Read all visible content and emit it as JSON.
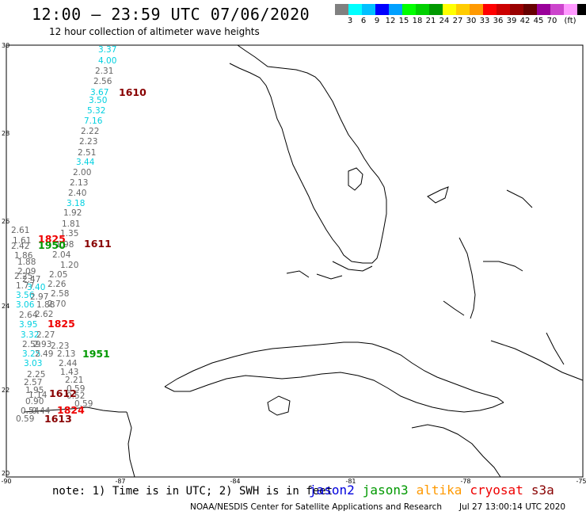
{
  "header": {
    "title": "12:00 — 23:59 UTC 07/06/2020",
    "subtitle": "12 hour collection of altimeter wave heights"
  },
  "legend": {
    "unit": "(ft)",
    "colors": [
      "#808080",
      "#00ffff",
      "#00c0ff",
      "#0000ff",
      "#00a0ff",
      "#00ff00",
      "#00d000",
      "#009900",
      "#ffff00",
      "#ffcc00",
      "#ff9900",
      "#ff0000",
      "#cc0000",
      "#990000",
      "#660000",
      "#990099",
      "#cc44cc",
      "#ff99ff",
      "#000000"
    ],
    "labels": [
      "3",
      "6",
      "9",
      "12",
      "15",
      "18",
      "21",
      "24",
      "27",
      "30",
      "33",
      "36",
      "39",
      "42",
      "45",
      "70",
      "(ft)"
    ]
  },
  "axes": {
    "x_ticks": [
      "-90",
      "-87",
      "-84",
      "-81",
      "-78",
      "-75"
    ],
    "y_ticks": [
      "30",
      "28",
      "26",
      "24",
      "22",
      "20"
    ]
  },
  "wave_heights": [
    {
      "v": "3.37",
      "c": "#00d0e0"
    },
    {
      "v": "4.00",
      "c": "#00d0e0"
    },
    {
      "v": "2.31",
      "c": "#666666"
    },
    {
      "v": "2.56",
      "c": "#666666"
    },
    {
      "v": "3.67",
      "c": "#00d0e0"
    },
    {
      "v": "3.50",
      "c": "#00d0e0"
    },
    {
      "v": "5.32",
      "c": "#00d0e0"
    },
    {
      "v": "7.16",
      "c": "#00d0e0"
    },
    {
      "v": "2.22",
      "c": "#666666"
    },
    {
      "v": "2.23",
      "c": "#666666"
    },
    {
      "v": "2.51",
      "c": "#666666"
    },
    {
      "v": "3.44",
      "c": "#00d0e0"
    },
    {
      "v": "2.00",
      "c": "#666666"
    },
    {
      "v": "2.13",
      "c": "#666666"
    },
    {
      "v": "2.40",
      "c": "#666666"
    },
    {
      "v": "3.18",
      "c": "#00d0e0"
    },
    {
      "v": "1.92",
      "c": "#666666"
    },
    {
      "v": "1.81",
      "c": "#666666"
    },
    {
      "v": "1.35",
      "c": "#666666"
    },
    {
      "v": "1.98",
      "c": "#666666"
    },
    {
      "v": "2.04",
      "c": "#666666"
    },
    {
      "v": "1.20",
      "c": "#666666"
    },
    {
      "v": "2.05",
      "c": "#666666"
    },
    {
      "v": "2.26",
      "c": "#666666"
    },
    {
      "v": "2.58",
      "c": "#666666"
    },
    {
      "v": "2.70",
      "c": "#666666"
    },
    {
      "v": "2.61",
      "c": "#666666"
    },
    {
      "v": "1.61",
      "c": "#666666"
    },
    {
      "v": "2.42",
      "c": "#666666"
    },
    {
      "v": "1.86",
      "c": "#666666"
    },
    {
      "v": "1.88",
      "c": "#666666"
    },
    {
      "v": "2.09",
      "c": "#666666"
    },
    {
      "v": "2.25",
      "c": "#666666"
    },
    {
      "v": "1.77",
      "c": "#666666"
    },
    {
      "v": "2.47",
      "c": "#666666"
    },
    {
      "v": "3.40",
      "c": "#00d0e0"
    },
    {
      "v": "3.56",
      "c": "#00d0e0"
    },
    {
      "v": "2.97",
      "c": "#666666"
    },
    {
      "v": "3.06",
      "c": "#00d0e0"
    },
    {
      "v": "1.88",
      "c": "#666666"
    },
    {
      "v": "2.64",
      "c": "#666666"
    },
    {
      "v": "3.95",
      "c": "#00d0e0"
    },
    {
      "v": "2.62",
      "c": "#666666"
    },
    {
      "v": "3.32",
      "c": "#00d0e0"
    },
    {
      "v": "2.27",
      "c": "#666666"
    },
    {
      "v": "2.59",
      "c": "#666666"
    },
    {
      "v": "2.93",
      "c": "#666666"
    },
    {
      "v": "2.23",
      "c": "#666666"
    },
    {
      "v": "3.25",
      "c": "#00d0e0"
    },
    {
      "v": "2.49",
      "c": "#666666"
    },
    {
      "v": "3.03",
      "c": "#00d0e0"
    },
    {
      "v": "2.13",
      "c": "#666666"
    },
    {
      "v": "2.44",
      "c": "#666666"
    },
    {
      "v": "2.25",
      "c": "#666666"
    },
    {
      "v": "1.43",
      "c": "#666666"
    },
    {
      "v": "2.57",
      "c": "#666666"
    },
    {
      "v": "2.21",
      "c": "#666666"
    },
    {
      "v": "1.95",
      "c": "#666666"
    },
    {
      "v": "0.59",
      "c": "#666666"
    },
    {
      "v": "1.14",
      "c": "#666666"
    },
    {
      "v": "0.52",
      "c": "#666666"
    },
    {
      "v": "0.90",
      "c": "#666666"
    },
    {
      "v": "0.59",
      "c": "#666666"
    },
    {
      "v": "0.54",
      "c": "#666666"
    },
    {
      "v": "0.44",
      "c": "#666666"
    },
    {
      "v": "0.59",
      "c": "#666666"
    }
  ],
  "pass_times": [
    {
      "t": "1610",
      "c": "#880000"
    },
    {
      "t": "1825",
      "c": "#ee0000"
    },
    {
      "t": "1950",
      "c": "#009900"
    },
    {
      "t": "1611",
      "c": "#880000"
    },
    {
      "t": "1825",
      "c": "#ee0000"
    },
    {
      "t": "1951",
      "c": "#009900"
    },
    {
      "t": "1612",
      "c": "#880000"
    },
    {
      "t": "1824",
      "c": "#ee0000"
    },
    {
      "t": "1613",
      "c": "#880000"
    }
  ],
  "footer": {
    "note": "note: 1) Time is in UTC; 2) SWH is in feet",
    "satellites": [
      {
        "name": "jason2",
        "color": "#0000dd"
      },
      {
        "name": "jason3",
        "color": "#009900"
      },
      {
        "name": "altika",
        "color": "#ff9900"
      },
      {
        "name": "cryosat",
        "color": "#ee0000"
      },
      {
        "name": "s3a",
        "color": "#880000"
      }
    ],
    "credit": "NOAA/NESDIS Center for Satellite Applications and Research",
    "timestamp": "Jul 27 13:00:14 UTC 2020"
  }
}
